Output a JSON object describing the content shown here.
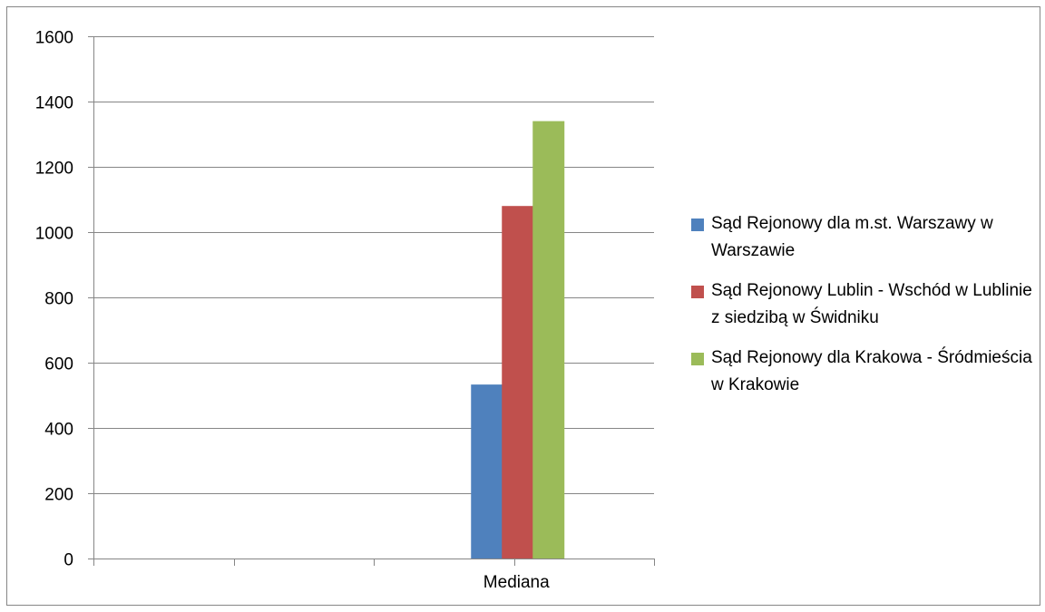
{
  "chart_data": {
    "type": "bar",
    "title": "",
    "xlabel": "",
    "ylabel": "",
    "categories": [
      "Mediana"
    ],
    "ylim": [
      0,
      1600
    ],
    "yticks": [
      "0",
      "200",
      "400",
      "600",
      "800",
      "1000",
      "1200",
      "1400",
      "1600"
    ],
    "grid": true,
    "legend_position": "right",
    "series": [
      {
        "name": "Sąd Rejonowy dla m.st. Warszawy w Warszawie",
        "values": [
          533
        ],
        "color": "#4F81BD"
      },
      {
        "name": "Sąd Rejonowy Lublin - Wschód w Lublinie z siedzibą w Świdniku",
        "values": [
          1080
        ],
        "color": "#C0504D"
      },
      {
        "name": "Sąd Rejonowy dla Krakowa - Śródmieścia w Krakowie",
        "values": [
          1340
        ],
        "color": "#9BBB59"
      }
    ]
  }
}
